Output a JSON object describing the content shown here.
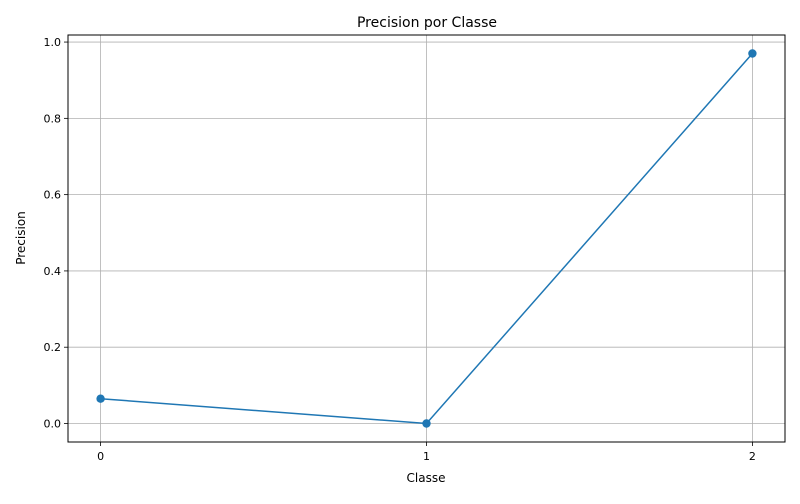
{
  "chart_data": {
    "type": "line",
    "title": "Precision por Classe",
    "xlabel": "Classe",
    "ylabel": "Precision",
    "x": [
      0,
      1,
      2
    ],
    "xticks": [
      "0",
      "1",
      "2"
    ],
    "yticks": [
      "0.0",
      "0.2",
      "0.4",
      "0.6",
      "0.8",
      "1.0"
    ],
    "ylim": [
      -0.0485,
      1.0185
    ],
    "xlim": [
      -0.1,
      2.1
    ],
    "grid": true,
    "marker": "circle",
    "series": [
      {
        "values": [
          0.065,
          0.0,
          0.97
        ],
        "color": "#1f77b4"
      }
    ]
  }
}
